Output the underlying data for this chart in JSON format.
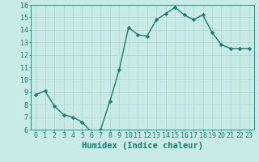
{
  "x": [
    0,
    1,
    2,
    3,
    4,
    5,
    6,
    7,
    8,
    9,
    10,
    11,
    12,
    13,
    14,
    15,
    16,
    17,
    18,
    19,
    20,
    21,
    22,
    23
  ],
  "y": [
    8.8,
    9.1,
    7.9,
    7.2,
    7.0,
    6.6,
    5.8,
    6.0,
    8.3,
    10.8,
    14.2,
    13.6,
    13.5,
    14.8,
    15.3,
    15.8,
    15.2,
    14.8,
    15.2,
    13.8,
    12.8,
    12.5,
    12.5,
    12.5
  ],
  "line_color": "#1a7a6e",
  "marker": "D",
  "marker_size": 2.2,
  "bg_color": "#c8eae8",
  "grid_color": "#b8d8d5",
  "xlabel": "Humidex (Indice chaleur)",
  "xlabel_fontsize": 7.5,
  "ylim": [
    6,
    16
  ],
  "xlim": [
    -0.5,
    23.5
  ],
  "yticks": [
    6,
    7,
    8,
    9,
    10,
    11,
    12,
    13,
    14,
    15,
    16
  ],
  "xticks": [
    0,
    1,
    2,
    3,
    4,
    5,
    6,
    7,
    8,
    9,
    10,
    11,
    12,
    13,
    14,
    15,
    16,
    17,
    18,
    19,
    20,
    21,
    22,
    23
  ],
  "tick_label_fontsize": 6.0,
  "line_width": 1.0,
  "axes_color": "#1a7a6e",
  "linestyle": "-"
}
